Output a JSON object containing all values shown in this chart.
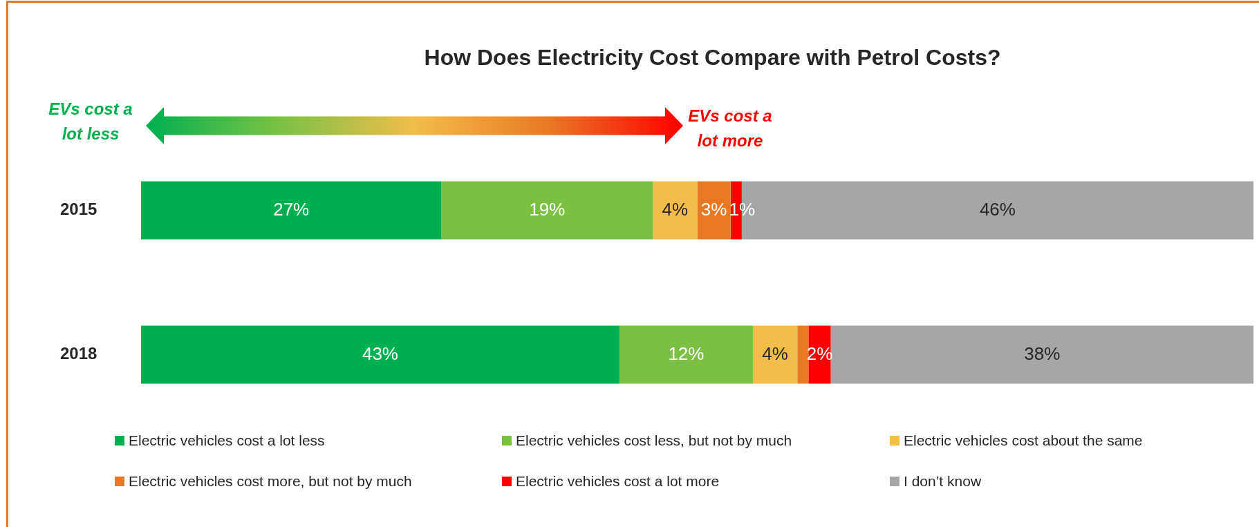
{
  "chart_data": {
    "type": "bar",
    "orientation": "horizontal",
    "stacked": true,
    "title": "How Does Electricity Cost Compare with Petrol Costs?",
    "categories": [
      "2015",
      "2018"
    ],
    "xlim": [
      0,
      100
    ],
    "tick_labels": "y",
    "legend": "bottom",
    "annotations": [
      "EVs cost a lot less",
      "EVs cost a lot more"
    ],
    "series": [
      {
        "name": "Electric vehicles cost a lot less",
        "color": "#00b050",
        "values": [
          27,
          43
        ],
        "value_labels": [
          "27%",
          "43%"
        ]
      },
      {
        "name": "Electric vehicles cost less, but not by much",
        "color": "#7ac143",
        "values": [
          19,
          12
        ],
        "value_labels": [
          "19%",
          "12%"
        ]
      },
      {
        "name": "Electric vehicles cost about the same",
        "color": "#f2bd4a",
        "values": [
          4,
          4
        ],
        "value_labels": [
          "4%",
          "4%"
        ]
      },
      {
        "name": "Electric vehicles cost more, but not by much",
        "color": "#e97823",
        "values": [
          3,
          1
        ],
        "value_labels": [
          "3%",
          null
        ]
      },
      {
        "name": "Electric vehicles cost a lot more",
        "color": "#ff0000",
        "values": [
          1,
          2
        ],
        "value_labels": [
          "1%",
          "2%"
        ]
      },
      {
        "name": "I don’t know",
        "color": "#a6a6a6",
        "values": [
          46,
          38
        ],
        "value_labels": [
          "46%",
          "38%"
        ]
      }
    ]
  }
}
